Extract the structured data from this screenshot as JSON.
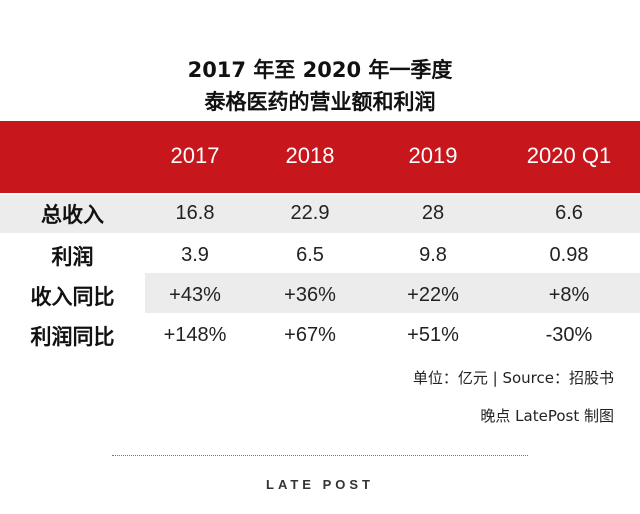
{
  "title_line1": "2017 年至 2020 年一季度",
  "title_line2": "泰格医药的营业额和利润",
  "chart_data": {
    "type": "table",
    "columns": [
      "2017",
      "2018",
      "2019",
      "2020 Q1"
    ],
    "rows": [
      {
        "label": "总收入",
        "values": [
          "16.8",
          "22.9",
          "28",
          "6.6"
        ]
      },
      {
        "label": "利润",
        "values": [
          "3.9",
          "6.5",
          "9.8",
          "0.98"
        ]
      },
      {
        "label": "收入同比",
        "values": [
          "+43%",
          "+36%",
          "+22%",
          "+8%"
        ]
      },
      {
        "label": "利润同比",
        "values": [
          "+148%",
          "+67%",
          "+51%",
          "-30%"
        ]
      }
    ],
    "header_color": "#c8161d",
    "band_color": "#ececec"
  },
  "notes": {
    "unit_source": "单位：亿元 | Source：招股书",
    "credit": "晚点 LatePost 制图"
  },
  "logo": "LATE POST"
}
